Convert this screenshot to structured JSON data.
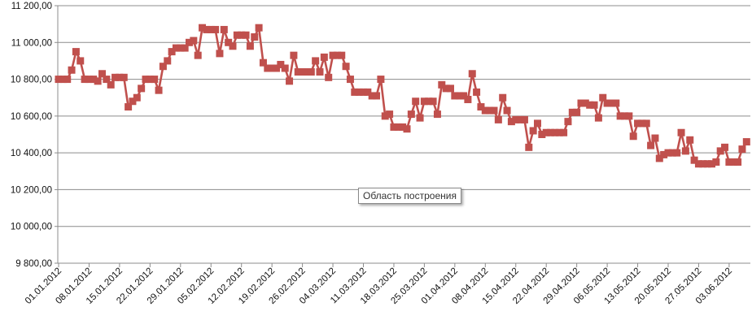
{
  "chart_data": {
    "type": "line",
    "title": "",
    "xlabel": "",
    "ylabel": "",
    "ylim": [
      9800,
      11200
    ],
    "y_ticks": [
      9800,
      10000,
      10200,
      10400,
      10600,
      10800,
      11000,
      11200
    ],
    "y_tick_labels": [
      "9 800,00",
      "10 000,00",
      "10 200,00",
      "10 400,00",
      "10 600,00",
      "10 800,00",
      "11 000,00",
      "11 200,00"
    ],
    "x_tick_labels": [
      "01.01.2012",
      "08.01.2012",
      "15.01.2012",
      "22.01.2012",
      "29.01.2012",
      "05.02.2012",
      "12.02.2012",
      "19.02.2012",
      "26.02.2012",
      "04.03.2012",
      "11.03.2012",
      "18.03.2012",
      "25.03.2012",
      "01.04.2012",
      "08.04.2012",
      "15.04.2012",
      "22.04.2012",
      "29.04.2012",
      "06.05.2012",
      "13.05.2012",
      "20.05.2012",
      "27.05.2012",
      "03.06.2012"
    ],
    "grid": "horizontal",
    "line_color": "#c0504d",
    "marker": "square",
    "series": [
      {
        "values": [
          10800,
          10800,
          10800,
          10850,
          10950,
          10900,
          10800,
          10800,
          10800,
          10790,
          10830,
          10800,
          10770,
          10810,
          10810,
          10810,
          10650,
          10680,
          10700,
          10750,
          10800,
          10800,
          10800,
          10740,
          10870,
          10900,
          10950,
          10970,
          10970,
          10970,
          11000,
          11010,
          10930,
          11080,
          11070,
          11070,
          11070,
          10940,
          11070,
          11000,
          10980,
          11040,
          11040,
          11040,
          10980,
          11030,
          11080,
          10890,
          10860,
          10860,
          10860,
          10880,
          10860,
          10790,
          10930,
          10840,
          10840,
          10840,
          10840,
          10900,
          10840,
          10920,
          10810,
          10930,
          10930,
          10930,
          10870,
          10800,
          10730,
          10730,
          10730,
          10730,
          10710,
          10710,
          10800,
          10600,
          10610,
          10540,
          10540,
          10540,
          10530,
          10610,
          10680,
          10590,
          10680,
          10680,
          10680,
          10610,
          10770,
          10750,
          10750,
          10710,
          10710,
          10710,
          10690,
          10830,
          10730,
          10650,
          10630,
          10630,
          10630,
          10580,
          10700,
          10630,
          10570,
          10580,
          10580,
          10580,
          10430,
          10520,
          10560,
          10500,
          10510,
          10510,
          10510,
          10510,
          10510,
          10570,
          10620,
          10620,
          10670,
          10670,
          10660,
          10660,
          10590,
          10700,
          10670,
          10670,
          10670,
          10600,
          10600,
          10600,
          10490,
          10560,
          10560,
          10560,
          10440,
          10480,
          10370,
          10390,
          10400,
          10400,
          10400,
          10510,
          10410,
          10470,
          10360,
          10340,
          10340,
          10340,
          10340,
          10350,
          10410,
          10430,
          10350,
          10350,
          10350,
          10420,
          10460
        ]
      }
    ]
  },
  "tooltip": {
    "text": "Область построения"
  }
}
